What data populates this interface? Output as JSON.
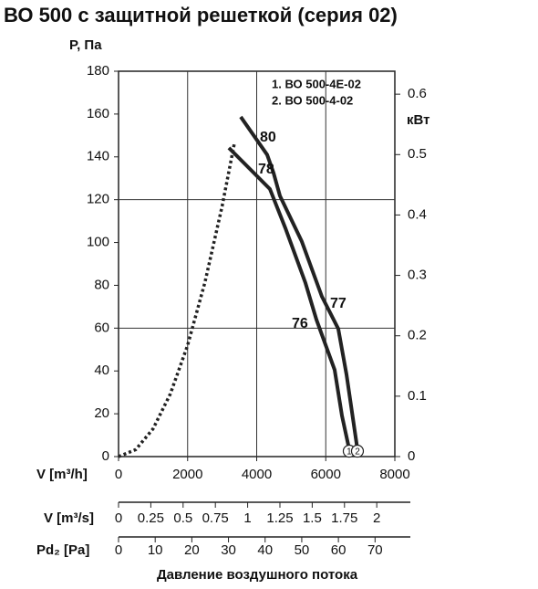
{
  "chart_data": {
    "type": "line",
    "title": "ВО 500 с защитной решеткой (серия 02)",
    "y_label": "P, Па",
    "y2_label": "кВт",
    "x_label": "V [m³/h]",
    "xlim": [
      0,
      8000
    ],
    "xticks": [
      0,
      2000,
      4000,
      6000,
      8000
    ],
    "ylim": [
      0,
      180
    ],
    "yticks": [
      0,
      20,
      40,
      60,
      80,
      100,
      120,
      140,
      160,
      180
    ],
    "y2lim": [
      0,
      0.638
    ],
    "y2ticks": [
      0,
      0.1,
      0.2,
      0.3,
      0.4,
      0.5,
      0.6
    ],
    "grid_x": [
      2000,
      4000,
      6000
    ],
    "grid_y": [
      60,
      120
    ],
    "series": [
      {
        "name": "1. ВО 500-4Е-02",
        "end_label": "1",
        "color": "#222222",
        "x": [
          3194,
          4382,
          4831,
          5412,
          5729,
          6257,
          6468,
          6679
        ],
        "values": [
          144.2,
          125.0,
          106.7,
          81.1,
          64.0,
          40.5,
          19.2,
          3.4
        ]
      },
      {
        "name": "2. ВО 500-4-02",
        "end_label": "2",
        "color": "#222222",
        "x": [
          3538,
          4303,
          4488,
          4673,
          5306,
          5887,
          6362,
          6600,
          6917
        ],
        "values": [
          158.7,
          141.0,
          132.5,
          121.8,
          100.5,
          74.8,
          59.7,
          38.4,
          3.4
        ]
      },
      {
        "style": "dotted",
        "color": "#222222",
        "x": [
          0,
          500,
          1000,
          1500,
          2000,
          2500,
          3000,
          3350
        ],
        "values": [
          0,
          3.3,
          13,
          29.3,
          52,
          81.3,
          117,
          146
        ]
      }
    ],
    "annotations": [
      "80",
      "78",
      "76",
      "77"
    ],
    "scale_m3s": {
      "label": "V [m³/s]",
      "lim": [
        0,
        2.14
      ],
      "ticks": [
        0,
        0.25,
        0.5,
        0.75,
        1,
        1.25,
        1.5,
        1.75,
        2
      ]
    },
    "scale_pd": {
      "label": "Pd₂ [Pa]",
      "lim": [
        0,
        75.4
      ],
      "ticks": [
        0,
        10,
        20,
        30,
        40,
        50,
        60,
        70
      ]
    },
    "footer": "Давление воздушного потока"
  }
}
